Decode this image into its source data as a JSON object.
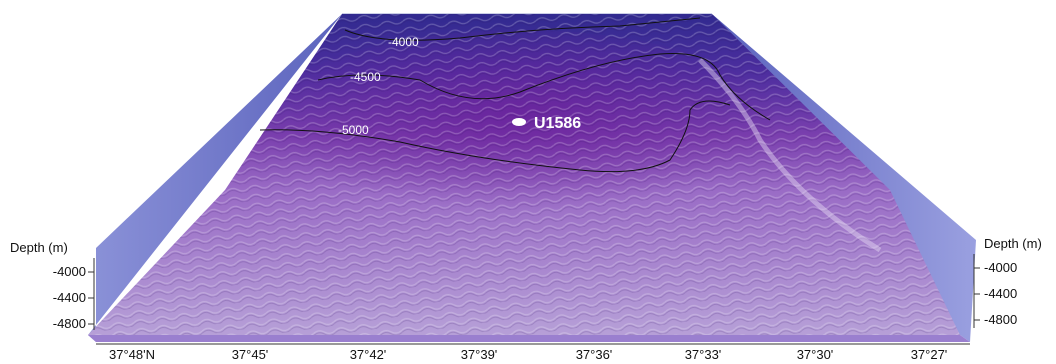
{
  "map": {
    "site": {
      "label": "U1586"
    },
    "contours": [
      {
        "label": "-4000",
        "depth": -4000
      },
      {
        "label": "-4500",
        "depth": -4500
      },
      {
        "label": "-5000",
        "depth": -5000
      }
    ],
    "depth_axis_left": {
      "title": "Depth (m)",
      "ticks": [
        "-4000",
        "-4400",
        "-4800"
      ]
    },
    "depth_axis_right": {
      "title": "Depth (m)",
      "ticks": [
        "-4000",
        "-4400",
        "-4800"
      ]
    },
    "latitude_axis": {
      "ticks": [
        "37°48'N",
        "37°45'",
        "37°42'",
        "37°39'",
        "37°36'",
        "37°33'",
        "37°30'",
        "37°27'"
      ]
    },
    "colors": {
      "deep": "#b39ad6",
      "mid": "#7a3fb0",
      "shallow": "#3a2a9a",
      "wall": "#6a74c8",
      "contour_line": "#111111",
      "site_marker": "#ffffff"
    }
  }
}
